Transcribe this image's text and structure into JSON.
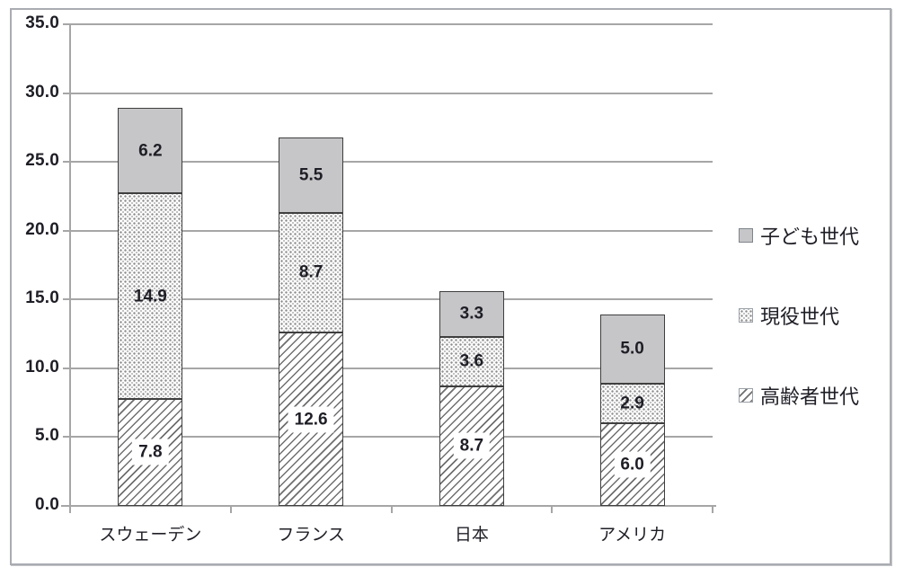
{
  "chart_data": {
    "type": "bar",
    "stacked": true,
    "title": "",
    "categories": [
      "スウェーデン",
      "フランス",
      "日本",
      "アメリカ"
    ],
    "series": [
      {
        "name": "高齢者世代",
        "pattern": "diagonal-hatch",
        "values": [
          7.8,
          12.6,
          8.7,
          6.0
        ]
      },
      {
        "name": "現役世代",
        "pattern": "dots",
        "values": [
          14.9,
          8.7,
          3.6,
          2.9
        ]
      },
      {
        "name": "子ども世代",
        "pattern": "solid-gray",
        "values": [
          6.2,
          5.5,
          3.3,
          5.0
        ]
      }
    ],
    "totals": [
      28.9,
      26.8,
      15.6,
      13.9
    ],
    "legend": [
      "子ども世代",
      "現役世代",
      "高齢者世代"
    ],
    "legend_position": "right",
    "y_ticks": [
      0.0,
      5.0,
      10.0,
      15.0,
      20.0,
      25.0,
      30.0,
      35.0
    ],
    "y_tick_labels": [
      "0.0",
      "5.0",
      "10.0",
      "15.0",
      "20.0",
      "25.0",
      "30.0",
      "35.0"
    ],
    "ylim": [
      0,
      35
    ],
    "xlabel": "",
    "ylabel": "",
    "grid": true,
    "data_labels": true
  },
  "colors": {
    "solid_fill": "#c6c6c8",
    "bar_border": "#3f3f3f",
    "grid": "#a6a6a6",
    "text": "#1e1e26",
    "frame_border": "#a9acb1",
    "dot": "#8c8c8c",
    "hatch": "#6f6f6f",
    "label_box": "#ffffff"
  }
}
